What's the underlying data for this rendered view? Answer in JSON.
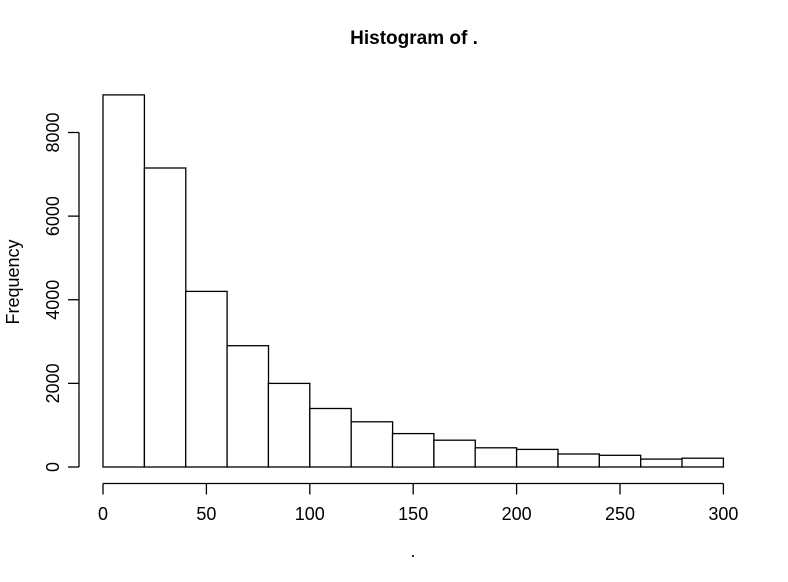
{
  "chart_data": {
    "type": "bar",
    "subtype": "histogram",
    "title": "Histogram of .",
    "xlabel": ".",
    "ylabel": "Frequency",
    "bin_edges": [
      0,
      20,
      40,
      60,
      80,
      100,
      120,
      140,
      160,
      180,
      200,
      220,
      240,
      260,
      280,
      300
    ],
    "counts": [
      8900,
      7150,
      4200,
      2900,
      2000,
      1400,
      1080,
      800,
      640,
      460,
      420,
      310,
      280,
      190,
      210
    ],
    "x_ticks": [
      0,
      50,
      100,
      150,
      200,
      250,
      300
    ],
    "y_ticks": [
      0,
      2000,
      4000,
      6000,
      8000
    ],
    "xlim": [
      0,
      300
    ],
    "ylim": [
      0,
      8900
    ],
    "grid": false,
    "legend": "none",
    "bar_fill": "#ffffff",
    "bar_stroke": "#000000",
    "axis_color": "#000000",
    "background": "#ffffff"
  }
}
